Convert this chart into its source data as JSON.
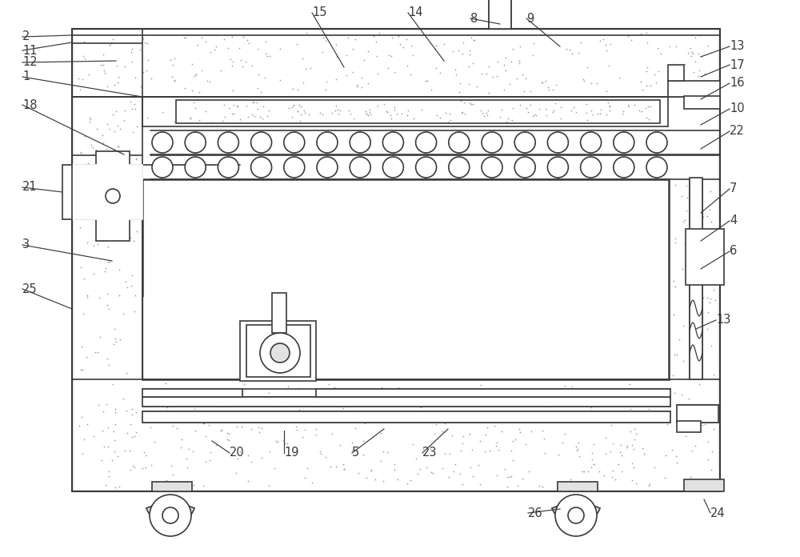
{
  "bg_color": "#ffffff",
  "lc": "#3a3a3a",
  "stipple_fc": "#e2e2e2",
  "stipple_dot": "#999999",
  "white": "#ffffff",
  "figsize": [
    10.0,
    6.96
  ],
  "dpi": 100,
  "fs": 10.5
}
